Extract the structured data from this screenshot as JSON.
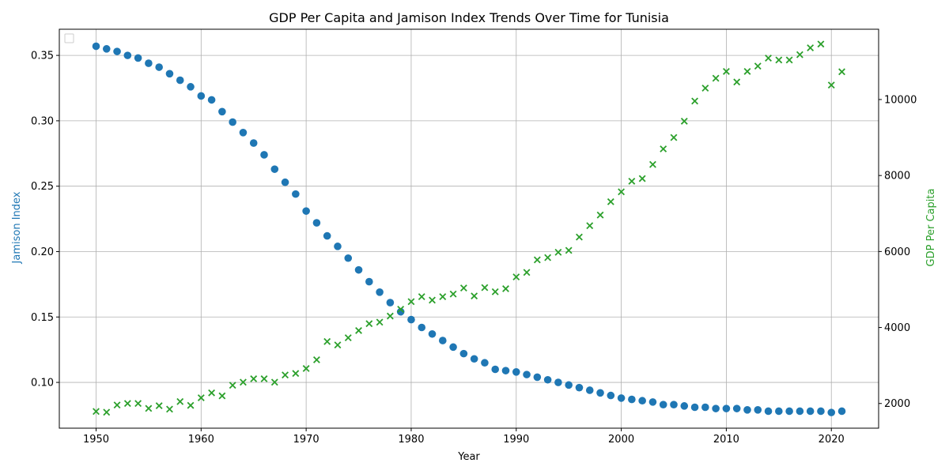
{
  "chart_data": {
    "type": "scatter",
    "title": "GDP Per Capita and Jamison Index Trends Over Time for Tunisia",
    "xlabel": "Year",
    "ylabel_left": "Jamison Index",
    "ylabel_right": "GDP Per Capita",
    "xlim": [
      1946.5,
      2024.5
    ],
    "ylim_left": [
      0.065,
      0.37
    ],
    "ylim_right": [
      1350,
      11850
    ],
    "x_ticks": [
      1950,
      1960,
      1970,
      1980,
      1990,
      2000,
      2010,
      2020
    ],
    "y_left_ticks": [
      "0.10",
      "0.15",
      "0.20",
      "0.25",
      "0.30",
      "0.35"
    ],
    "y_left_tick_values": [
      0.1,
      0.15,
      0.2,
      0.25,
      0.3,
      0.35
    ],
    "y_right_ticks": [
      "2000",
      "4000",
      "6000",
      "8000",
      "10000"
    ],
    "y_right_tick_values": [
      2000,
      4000,
      6000,
      8000,
      10000
    ],
    "grid": true,
    "legend": {
      "placement": "upper-left",
      "entries": []
    },
    "colors": {
      "left_series": "#1f77b4",
      "right_series": "#2ca02c",
      "axis": "#000000",
      "grid": "#b0b0b0"
    },
    "x": [
      1950,
      1951,
      1952,
      1953,
      1954,
      1955,
      1956,
      1957,
      1958,
      1959,
      1960,
      1961,
      1962,
      1963,
      1964,
      1965,
      1966,
      1967,
      1968,
      1969,
      1970,
      1971,
      1972,
      1973,
      1974,
      1975,
      1976,
      1977,
      1978,
      1979,
      1980,
      1981,
      1982,
      1983,
      1984,
      1985,
      1986,
      1987,
      1988,
      1989,
      1990,
      1991,
      1992,
      1993,
      1994,
      1995,
      1996,
      1997,
      1998,
      1999,
      2000,
      2001,
      2002,
      2003,
      2004,
      2005,
      2006,
      2007,
      2008,
      2009,
      2010,
      2011,
      2012,
      2013,
      2014,
      2015,
      2016,
      2017,
      2018,
      2019,
      2020,
      2021
    ],
    "series": [
      {
        "axis": "left",
        "marker": "circle",
        "values": [
          0.357,
          0.355,
          0.353,
          0.35,
          0.348,
          0.344,
          0.341,
          0.336,
          0.331,
          0.326,
          0.319,
          0.316,
          0.307,
          0.299,
          0.291,
          0.283,
          0.274,
          0.263,
          0.253,
          0.244,
          0.231,
          0.222,
          0.212,
          0.204,
          0.195,
          0.186,
          0.177,
          0.169,
          0.161,
          0.154,
          0.148,
          0.142,
          0.137,
          0.132,
          0.127,
          0.122,
          0.118,
          0.115,
          0.11,
          0.109,
          0.108,
          0.106,
          0.104,
          0.102,
          0.1,
          0.098,
          0.096,
          0.094,
          0.092,
          0.09,
          0.088,
          0.087,
          0.086,
          0.085,
          0.083,
          0.083,
          0.082,
          0.081,
          0.081,
          0.08,
          0.08,
          0.08,
          0.079,
          0.079,
          0.078,
          0.078,
          0.078,
          0.078,
          0.078,
          0.078,
          0.077,
          0.078
        ]
      },
      {
        "axis": "right",
        "marker": "x",
        "values": [
          1790,
          1770,
          1960,
          2000,
          2000,
          1870,
          1940,
          1850,
          2050,
          1950,
          2150,
          2280,
          2200,
          2480,
          2560,
          2650,
          2650,
          2560,
          2750,
          2790,
          2920,
          3150,
          3630,
          3540,
          3730,
          3920,
          4100,
          4140,
          4300,
          4480,
          4680,
          4810,
          4720,
          4810,
          4880,
          5040,
          4830,
          5050,
          4940,
          5020,
          5330,
          5450,
          5780,
          5840,
          5980,
          6030,
          6380,
          6680,
          6960,
          7310,
          7570,
          7850,
          7920,
          8290,
          8700,
          9000,
          9430,
          9960,
          10300,
          10560,
          10740,
          10460,
          10740,
          10880,
          11090,
          11040,
          11040,
          11180,
          11360,
          11460,
          10380,
          10730
        ]
      }
    ]
  }
}
